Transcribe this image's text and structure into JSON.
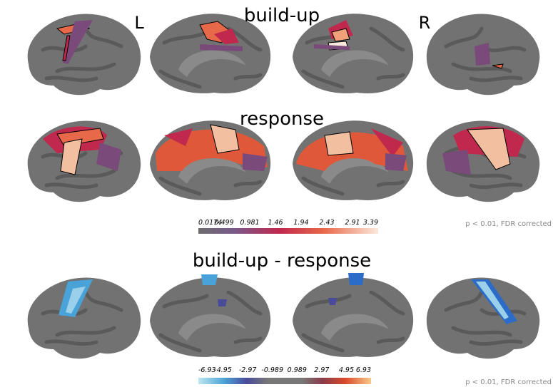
{
  "labels": {
    "left": "L",
    "right": "R"
  },
  "panels": [
    {
      "title": "build-up"
    },
    {
      "title": "response"
    },
    {
      "title": "build-up - response"
    }
  ],
  "colorbars": [
    {
      "ticks": [
        0.0174,
        0.499,
        0.981,
        1.46,
        1.94,
        2.43,
        2.91,
        3.39
      ],
      "note": "p < 0.01, FDR corrected"
    },
    {
      "ticks": [
        -6.93,
        -4.95,
        -2.97,
        -0.989,
        0.989,
        2.97,
        4.95,
        6.93
      ],
      "note": "p < 0.01, FDR corrected"
    }
  ]
}
